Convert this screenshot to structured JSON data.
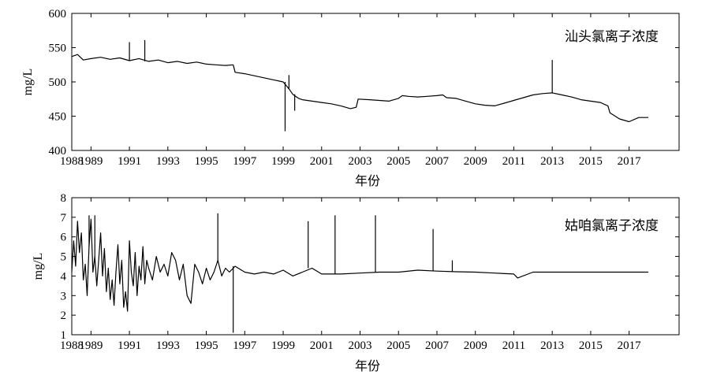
{
  "chart_data": [
    {
      "type": "line",
      "legend": "汕头氯离子浓度",
      "legend_position": "top-right",
      "xlabel": "年份",
      "ylabel": "mg/L",
      "xlim": [
        1988,
        2019.6
      ],
      "ylim": [
        400,
        600
      ],
      "grid": false,
      "xticks": [
        1988,
        1989,
        1991,
        1993,
        1995,
        1997,
        1999,
        2001,
        2003,
        2005,
        2007,
        2009,
        2011,
        2013,
        2015,
        2017
      ],
      "yticks": [
        400,
        450,
        500,
        550,
        600
      ],
      "series": [
        {
          "x": [
            1988.0,
            1988.3,
            1988.6,
            1989.0,
            1989.5,
            1990.0,
            1990.5,
            1991.0,
            1991.5,
            1992.0,
            1992.5,
            1993.0,
            1993.5,
            1994.0,
            1994.5,
            1995.0,
            1995.5,
            1996.0,
            1996.4,
            1996.5,
            1997.0,
            1997.5,
            1998.0,
            1998.5,
            1999.0,
            1999.3,
            1999.5,
            1999.8,
            2000.0,
            2000.5,
            2001.0,
            2001.5,
            2002.0,
            2002.5,
            2002.8,
            2002.9,
            2003.5,
            2004.0,
            2004.5,
            2005.0,
            2005.2,
            2005.5,
            2006.0,
            2006.5,
            2007.0,
            2007.3,
            2007.5,
            2008.0,
            2008.5,
            2009.0,
            2009.5,
            2010.0,
            2010.5,
            2011.0,
            2011.5,
            2012.0,
            2012.5,
            2013.0,
            2013.5,
            2014.0,
            2014.5,
            2015.0,
            2015.5,
            2015.9,
            2016.0,
            2016.5,
            2017.0,
            2017.5,
            2018.0
          ],
          "y": [
            537,
            540,
            532,
            534,
            536,
            533,
            535,
            531,
            534,
            530,
            532,
            528,
            530,
            527,
            529,
            526,
            525,
            524,
            525,
            514,
            512,
            509,
            506,
            503,
            500,
            490,
            482,
            476,
            474,
            472,
            470,
            468,
            465,
            461,
            463,
            475,
            474,
            473,
            472,
            476,
            480,
            479,
            478,
            479,
            480,
            481,
            477,
            476,
            472,
            468,
            466,
            465,
            469,
            473,
            477,
            481,
            483,
            484,
            481,
            478,
            474,
            472,
            470,
            465,
            455,
            446,
            442,
            448,
            448
          ]
        }
      ],
      "spikes": [
        {
          "x": 1991.0,
          "y": 558
        },
        {
          "x": 1991.8,
          "y": 561
        },
        {
          "x": 1999.1,
          "y": 428
        },
        {
          "x": 1999.3,
          "y": 510
        },
        {
          "x": 1999.6,
          "y": 458
        },
        {
          "x": 2013.0,
          "y": 532
        }
      ]
    },
    {
      "type": "line",
      "legend": "姑咱氯离子浓度",
      "legend_position": "top-right",
      "xlabel": "年份",
      "ylabel": "mg/L",
      "xlim": [
        1988,
        2019.6
      ],
      "ylim": [
        1,
        8
      ],
      "grid": false,
      "xticks": [
        1988,
        1989,
        1991,
        1993,
        1995,
        1997,
        1999,
        2001,
        2003,
        2005,
        2007,
        2009,
        2011,
        2013,
        2015,
        2017
      ],
      "yticks": [
        1,
        2,
        3,
        4,
        5,
        6,
        7,
        8
      ],
      "series": [
        {
          "x": [
            1988.0,
            1988.1,
            1988.2,
            1988.3,
            1988.4,
            1988.5,
            1988.6,
            1988.7,
            1988.8,
            1988.9,
            1989.0,
            1989.1,
            1989.2,
            1989.3,
            1989.4,
            1989.5,
            1989.6,
            1989.7,
            1989.8,
            1989.9,
            1990.0,
            1990.1,
            1990.2,
            1990.3,
            1990.4,
            1990.5,
            1990.6,
            1990.7,
            1990.8,
            1990.9,
            1991.0,
            1991.1,
            1991.2,
            1991.3,
            1991.4,
            1991.5,
            1991.6,
            1991.7,
            1991.8,
            1991.9,
            1992.0,
            1992.2,
            1992.4,
            1992.6,
            1992.8,
            1993.0,
            1993.2,
            1993.4,
            1993.6,
            1993.8,
            1994.0,
            1994.2,
            1994.4,
            1994.6,
            1994.8,
            1995.0,
            1995.2,
            1995.4,
            1995.6,
            1995.8,
            1996.0,
            1996.2,
            1996.5,
            1997.0,
            1997.5,
            1998.0,
            1998.5,
            1999.0,
            1999.5,
            2000.0,
            2000.5,
            2001.0,
            2002.0,
            2003.0,
            2004.0,
            2005.0,
            2006.0,
            2007.0,
            2008.0,
            2009.0,
            2010.0,
            2011.0,
            2011.2,
            2012.0,
            2013.0,
            2014.0,
            2015.0,
            2016.0,
            2017.0,
            2018.0
          ],
          "y": [
            4.2,
            5.8,
            4.5,
            6.8,
            5.2,
            6.2,
            3.8,
            4.6,
            3.0,
            5.5,
            6.9,
            4.2,
            5.0,
            3.5,
            4.8,
            6.2,
            4.0,
            5.4,
            3.2,
            4.4,
            2.8,
            3.8,
            2.5,
            4.2,
            5.6,
            3.6,
            4.8,
            2.4,
            3.2,
            2.2,
            5.8,
            4.2,
            3.5,
            5.2,
            3.0,
            4.5,
            3.8,
            5.5,
            3.6,
            4.8,
            4.4,
            3.8,
            5.0,
            4.2,
            4.6,
            4.0,
            5.2,
            4.8,
            3.8,
            4.6,
            3.0,
            2.6,
            4.6,
            4.2,
            3.6,
            4.4,
            3.8,
            4.2,
            4.8,
            4.0,
            4.4,
            4.2,
            4.5,
            4.2,
            4.1,
            4.2,
            4.1,
            4.3,
            4.0,
            4.2,
            4.4,
            4.1,
            4.1,
            4.15,
            4.2,
            4.2,
            4.3,
            4.25,
            4.22,
            4.2,
            4.15,
            4.1,
            3.9,
            4.2,
            4.2,
            4.2,
            4.2,
            4.2,
            4.2,
            4.2
          ]
        }
      ],
      "spikes": [
        {
          "x": 1988.9,
          "y": 7.1
        },
        {
          "x": 1989.2,
          "y": 7.1
        },
        {
          "x": 1995.6,
          "y": 7.2
        },
        {
          "x": 1996.4,
          "y": 1.1
        },
        {
          "x": 2000.3,
          "y": 6.8
        },
        {
          "x": 2001.7,
          "y": 7.1
        },
        {
          "x": 2003.8,
          "y": 7.1
        },
        {
          "x": 2006.8,
          "y": 6.4
        },
        {
          "x": 2007.8,
          "y": 4.8
        }
      ]
    }
  ]
}
